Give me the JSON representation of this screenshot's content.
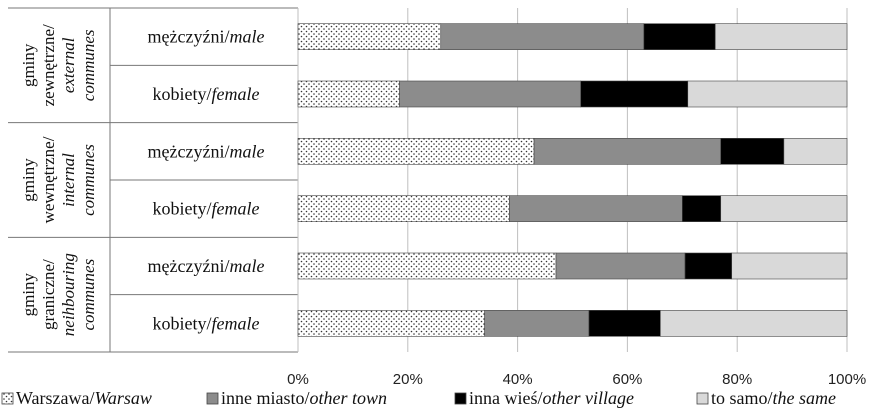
{
  "chart_data": {
    "type": "bar",
    "orientation": "horizontal",
    "stacked": true,
    "percent_stacked": true,
    "xlim": [
      0,
      100
    ],
    "x_ticks": [
      "0%",
      "20%",
      "40%",
      "60%",
      "80%",
      "100%"
    ],
    "grid": "vertical",
    "legend_position": "bottom",
    "groups": [
      {
        "lines": [
          {
            "text": "gminy",
            "italic": false
          },
          {
            "text": "zewnętrzne/",
            "italic": false
          },
          {
            "text": "external",
            "italic": true
          },
          {
            "text": "communes",
            "italic": true
          }
        ]
      },
      {
        "lines": [
          {
            "text": "gminy",
            "italic": false
          },
          {
            "text": "wewnętrzne/",
            "italic": false
          },
          {
            "text": "internal",
            "italic": true
          },
          {
            "text": "communes",
            "italic": true
          }
        ]
      },
      {
        "lines": [
          {
            "text": "gminy",
            "italic": false
          },
          {
            "text": "graniczne/",
            "italic": false
          },
          {
            "text": "neihbouring",
            "italic": true
          },
          {
            "text": "communes",
            "italic": true
          }
        ]
      }
    ],
    "rows": [
      {
        "group": 0,
        "label_pl": "mężczyźni/",
        "label_en": "male"
      },
      {
        "group": 0,
        "label_pl": "kobiety/",
        "label_en": "female"
      },
      {
        "group": 1,
        "label_pl": "mężczyźni/",
        "label_en": "male"
      },
      {
        "group": 1,
        "label_pl": "kobiety/",
        "label_en": "female"
      },
      {
        "group": 2,
        "label_pl": "mężczyźni/",
        "label_en": "male"
      },
      {
        "group": 2,
        "label_pl": "kobiety/",
        "label_en": "female"
      }
    ],
    "series": [
      {
        "name_pl": "Warszawa/",
        "name_en": "Warsaw",
        "pattern": "dots",
        "color": "#ffffff",
        "values": [
          26,
          18.5,
          43,
          38.5,
          47,
          34
        ]
      },
      {
        "name_pl": "inne miasto/",
        "name_en": "other town",
        "pattern": "solid",
        "color": "#8c8c8c",
        "values": [
          37,
          33,
          34,
          31.5,
          23.5,
          19
        ]
      },
      {
        "name_pl": "inna wieś/",
        "name_en": "other village",
        "pattern": "solid",
        "color": "#000000",
        "values": [
          13,
          19.5,
          11.5,
          7,
          8.5,
          13
        ]
      },
      {
        "name_pl": "to samo/",
        "name_en": "the same",
        "pattern": "solid",
        "color": "#d9d9d9",
        "values": [
          24,
          29,
          11.5,
          23,
          21,
          34
        ]
      }
    ]
  }
}
